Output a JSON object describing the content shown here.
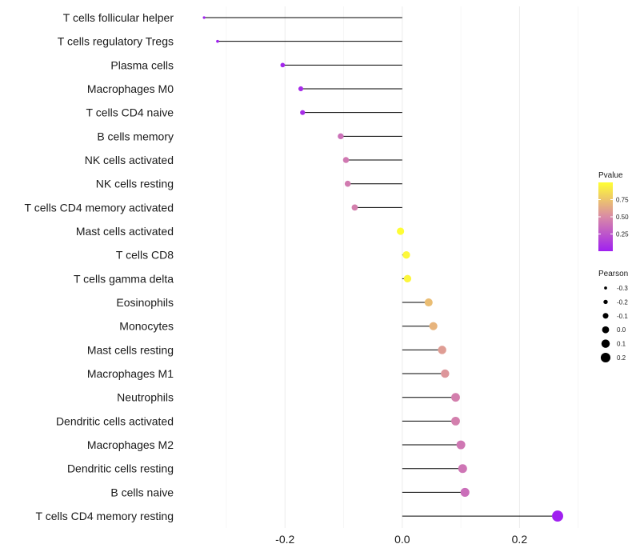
{
  "chart_data": {
    "type": "lollipop",
    "title": "",
    "xlabel": "",
    "ylabel": "",
    "xlim": [
      -0.375,
      0.31
    ],
    "xticks": [
      -0.2,
      0.0,
      0.2
    ],
    "xtick_labels": [
      "-0.2",
      "0.0",
      "0.2"
    ],
    "baseline": 0.0,
    "grid": true,
    "categories": [
      "T cells follicular helper",
      "T cells regulatory  Tregs",
      "Plasma cells",
      "Macrophages M0",
      "T cells CD4 naive",
      "B cells memory",
      "NK cells activated",
      "NK cells resting",
      "T cells CD4 memory activated",
      "Mast cells activated",
      "T cells CD8",
      "T cells gamma delta",
      "Eosinophils",
      "Monocytes",
      "Mast cells resting",
      "Macrophages M1",
      "Neutrophils",
      "Dendritic cells activated",
      "Macrophages M2",
      "Dendritic cells resting",
      "B cells naive",
      "T cells CD4 memory resting"
    ],
    "pearson": [
      -0.338,
      -0.315,
      -0.204,
      -0.173,
      -0.17,
      -0.105,
      -0.096,
      -0.093,
      -0.081,
      -0.003,
      0.007,
      0.009,
      0.045,
      0.053,
      0.068,
      0.073,
      0.091,
      0.091,
      0.1,
      0.103,
      0.107,
      0.265
    ],
    "pvalue": [
      0.001,
      0.002,
      0.03,
      0.05,
      0.06,
      0.38,
      0.42,
      0.43,
      0.45,
      0.99,
      0.97,
      0.96,
      0.72,
      0.68,
      0.58,
      0.55,
      0.45,
      0.45,
      0.41,
      0.4,
      0.37,
      0.0002
    ],
    "legend_color": {
      "title": "Pvalue",
      "ticks": [
        "0.75",
        "0.50",
        "0.25"
      ],
      "tick_values": [
        0.75,
        0.5,
        0.25
      ],
      "range": [
        0.0,
        1.0
      ],
      "low_color": "#a020f0",
      "mid_color": "#d98aa6",
      "high_color": "#ffff33",
      "placement": "right"
    },
    "legend_size": {
      "title": "Pearson",
      "labels": [
        "-0.3",
        "-0.2",
        "-0.1",
        "0.0",
        "0.1",
        "0.2"
      ],
      "values": [
        -0.3,
        -0.2,
        -0.1,
        0.0,
        0.1,
        0.2
      ],
      "placement": "right"
    }
  }
}
